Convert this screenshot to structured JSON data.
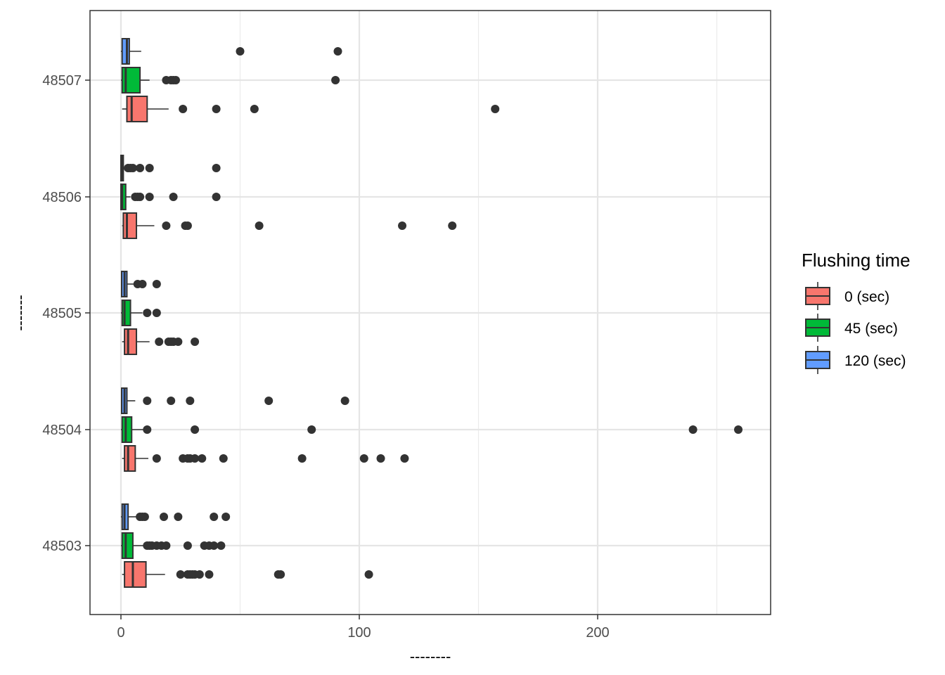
{
  "chart_data": {
    "type": "boxplot",
    "orientation": "horizontal",
    "title": "",
    "xlabel": "--------",
    "ylabel": "-------",
    "xlim": [
      -13,
      272
    ],
    "x_ticks": [
      0,
      100,
      200
    ],
    "grid": true,
    "legend": {
      "title": "Flushing time",
      "placement": "right",
      "entries": [
        {
          "label": "0 (sec)",
          "color": "#F8766D"
        },
        {
          "label": "45 (sec)",
          "color": "#00BA38"
        },
        {
          "label": "120 (sec)",
          "color": "#619CFF"
        }
      ]
    },
    "categories": [
      "48503",
      "48504",
      "48505",
      "48506",
      "48507"
    ],
    "series": [
      {
        "name": "0 (sec)",
        "color": "#F8766D",
        "boxes": [
          {
            "category": "48503",
            "min": 0.5,
            "q1": 1.5,
            "median": 5,
            "q3": 10.5,
            "max": 18.5,
            "outliers": [
              25,
              28,
              29,
              30,
              31,
              33,
              37,
              66,
              67,
              104
            ]
          },
          {
            "category": "48504",
            "min": 0.5,
            "q1": 1.5,
            "median": 3,
            "q3": 6,
            "max": 11.5,
            "outliers": [
              15,
              26,
              28,
              29,
              31,
              34,
              43,
              76,
              102,
              109,
              119
            ]
          },
          {
            "category": "48505",
            "min": 0.5,
            "q1": 1.5,
            "median": 3,
            "q3": 6.5,
            "max": 12,
            "outliers": [
              16,
              20,
              21,
              22,
              24,
              31
            ]
          },
          {
            "category": "48506",
            "min": 0.5,
            "q1": 1,
            "median": 2.5,
            "q3": 6.5,
            "max": 14,
            "outliers": [
              19,
              27,
              28,
              58,
              118,
              139
            ]
          },
          {
            "category": "48507",
            "min": 0.5,
            "q1": 2.5,
            "median": 4.5,
            "q3": 11,
            "max": 20,
            "outliers": [
              26,
              40,
              56,
              157
            ]
          }
        ]
      },
      {
        "name": "45 (sec)",
        "color": "#00BA38",
        "boxes": [
          {
            "category": "48503",
            "min": 0,
            "q1": 0.5,
            "median": 2,
            "q3": 5,
            "max": 10,
            "outliers": [
              11,
              12,
              13,
              15,
              17,
              19,
              28,
              35,
              37,
              39,
              42
            ]
          },
          {
            "category": "48504",
            "min": 0,
            "q1": 0.5,
            "median": 2,
            "q3": 4.5,
            "max": 9.5,
            "outliers": [
              11,
              31,
              80,
              240,
              259
            ]
          },
          {
            "category": "48505",
            "min": 0,
            "q1": 0.5,
            "median": 1.5,
            "q3": 4,
            "max": 9,
            "outliers": [
              11,
              15
            ]
          },
          {
            "category": "48506",
            "min": 0,
            "q1": 0,
            "median": 0.5,
            "q3": 2,
            "max": 4,
            "outliers": [
              6,
              7,
              8,
              12,
              22,
              40
            ]
          },
          {
            "category": "48507",
            "min": 0,
            "q1": 0.5,
            "median": 2,
            "q3": 8,
            "max": 12,
            "outliers": [
              19,
              21,
              22,
              23,
              90
            ]
          }
        ]
      },
      {
        "name": "120 (sec)",
        "color": "#619CFF",
        "boxes": [
          {
            "category": "48503",
            "min": 0,
            "q1": 0.5,
            "median": 1.5,
            "q3": 3,
            "max": 6.5,
            "outliers": [
              8,
              9,
              10,
              18,
              24,
              39,
              44
            ]
          },
          {
            "category": "48504",
            "min": 0,
            "q1": 0.3,
            "median": 1.5,
            "q3": 2.5,
            "max": 6,
            "outliers": [
              11,
              21,
              29,
              62,
              94
            ]
          },
          {
            "category": "48505",
            "min": 0,
            "q1": 0.3,
            "median": 1.5,
            "q3": 2.5,
            "max": 6,
            "outliers": [
              7,
              9,
              15
            ]
          },
          {
            "category": "48506",
            "min": 0,
            "q1": 0,
            "median": 0.3,
            "q3": 1,
            "max": 2.5,
            "outliers": [
              3,
              4,
              5,
              8,
              12,
              40
            ]
          },
          {
            "category": "48507",
            "min": 0,
            "q1": 0.5,
            "median": 2.5,
            "q3": 3.5,
            "max": 8.5,
            "outliers": [
              50,
              91
            ]
          }
        ]
      }
    ]
  }
}
